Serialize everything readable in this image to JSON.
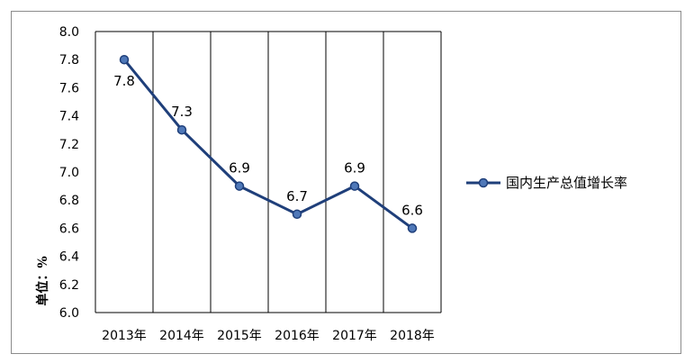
{
  "chart_data": {
    "type": "line",
    "title": "",
    "xlabel": "",
    "ylabel": "单位：%",
    "categories": [
      "2013年",
      "2014年",
      "2015年",
      "2016年",
      "2017年",
      "2018年"
    ],
    "series": [
      {
        "name": "国内生产总值增长率",
        "values": [
          7.8,
          7.3,
          6.9,
          6.7,
          6.9,
          6.6
        ]
      }
    ],
    "data_labels": [
      "7.8",
      "7.3",
      "6.9",
      "6.7",
      "6.9",
      "6.6"
    ],
    "ylim": [
      6.0,
      8.0
    ],
    "yticks": [
      "8.0",
      "7.8",
      "7.6",
      "7.4",
      "7.2",
      "7.0",
      "6.8",
      "6.6",
      "6.4",
      "6.2",
      "6.0"
    ],
    "grid": "vertical",
    "legend_position": "right",
    "colors": {
      "line": "#1f3f7a",
      "marker_fill": "#4f78b8",
      "marker_edge": "#1f3f7a",
      "grid": "#000000",
      "frame": "#8c8c8c"
    }
  }
}
